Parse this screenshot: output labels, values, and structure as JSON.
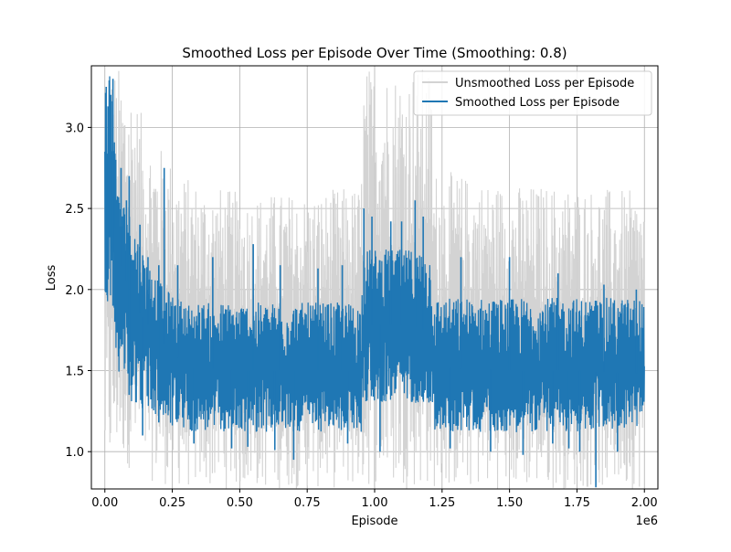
{
  "chart_data": {
    "type": "line",
    "title": "Smoothed Loss per Episode Over Time (Smoothing: 0.8)",
    "xlabel": "Episode",
    "ylabel": "Loss",
    "x_offset_label": "1e6",
    "xlim": [
      -0.05,
      2.05
    ],
    "ylim": [
      0.77,
      3.38
    ],
    "x_unit_multiplier": 1000000,
    "grid": true,
    "legend_position": "upper right",
    "x_ticks": [
      {
        "value": 0.0,
        "label": "0.00"
      },
      {
        "value": 0.25,
        "label": "0.25"
      },
      {
        "value": 0.5,
        "label": "0.50"
      },
      {
        "value": 0.75,
        "label": "0.75"
      },
      {
        "value": 1.0,
        "label": "1.00"
      },
      {
        "value": 1.25,
        "label": "1.25"
      },
      {
        "value": 1.5,
        "label": "1.50"
      },
      {
        "value": 1.75,
        "label": "1.75"
      },
      {
        "value": 2.0,
        "label": "2.00"
      }
    ],
    "y_ticks": [
      {
        "value": 1.0,
        "label": "1.0"
      },
      {
        "value": 1.5,
        "label": "1.5"
      },
      {
        "value": 2.0,
        "label": "2.0"
      },
      {
        "value": 2.5,
        "label": "2.5"
      },
      {
        "value": 3.0,
        "label": "3.0"
      }
    ],
    "series": [
      {
        "name": "Unsmoothed Loss per Episode",
        "color": "#d3d3d3",
        "style": "noisy band",
        "x": [
          0,
          0.05,
          0.1,
          0.15,
          0.2,
          0.3,
          0.5,
          0.75,
          0.95,
          0.96,
          1.1,
          1.21,
          1.22,
          1.5,
          1.75,
          2.0
        ],
        "lower": [
          0.77,
          0.95,
          0.88,
          0.83,
          0.8,
          0.77,
          0.77,
          0.77,
          0.77,
          0.77,
          0.77,
          0.77,
          0.77,
          0.77,
          0.77,
          0.77
        ],
        "upper": [
          3.38,
          3.38,
          3.3,
          3.0,
          2.9,
          2.7,
          2.6,
          2.6,
          2.65,
          3.38,
          3.38,
          3.38,
          2.75,
          2.65,
          2.65,
          2.6
        ]
      },
      {
        "name": "Smoothed Loss per Episode",
        "color": "#1f77b4",
        "style": "noisy band",
        "x": [
          0,
          0.02,
          0.05,
          0.1,
          0.15,
          0.2,
          0.25,
          0.3,
          0.5,
          0.75,
          0.95,
          0.96,
          1.1,
          1.2,
          1.21,
          1.22,
          1.5,
          1.75,
          2.0
        ],
        "center": [
          2.45,
          2.75,
          2.2,
          1.95,
          1.8,
          1.7,
          1.62,
          1.52,
          1.5,
          1.5,
          1.5,
          1.78,
          1.78,
          1.75,
          1.7,
          1.52,
          1.5,
          1.5,
          1.48
        ],
        "lower": [
          1.9,
          1.95,
          1.5,
          1.3,
          1.25,
          1.2,
          1.15,
          1.12,
          1.12,
          1.12,
          1.12,
          1.3,
          1.3,
          1.3,
          1.25,
          1.12,
          1.12,
          1.12,
          1.15
        ],
        "upper": [
          3.38,
          3.38,
          2.6,
          2.45,
          2.2,
          2.05,
          1.97,
          1.92,
          1.92,
          1.92,
          1.92,
          2.25,
          2.25,
          2.25,
          2.2,
          1.95,
          1.95,
          1.95,
          1.95
        ]
      }
    ],
    "spikes": {
      "up": [
        [
          0.005,
          3.25
        ],
        [
          0.03,
          3.3
        ],
        [
          0.04,
          2.8
        ],
        [
          0.06,
          2.75
        ],
        [
          0.08,
          2.55
        ],
        [
          0.09,
          2.7
        ],
        [
          0.13,
          2.4
        ],
        [
          0.16,
          2.2
        ],
        [
          0.2,
          2.15
        ],
        [
          0.22,
          2.75
        ],
        [
          0.27,
          2.15
        ],
        [
          0.4,
          2.2
        ],
        [
          0.55,
          2.28
        ],
        [
          0.65,
          2.15
        ],
        [
          0.79,
          2.13
        ],
        [
          0.88,
          2.15
        ],
        [
          0.96,
          2.5
        ],
        [
          0.99,
          2.45
        ],
        [
          1.06,
          2.42
        ],
        [
          1.1,
          2.42
        ],
        [
          1.15,
          2.55
        ],
        [
          1.18,
          2.45
        ],
        [
          1.32,
          2.2
        ],
        [
          1.5,
          2.2
        ],
        [
          1.68,
          2.1
        ],
        [
          1.85,
          2.03
        ],
        [
          1.97,
          2.0
        ]
      ],
      "down": [
        [
          0.03,
          1.9
        ],
        [
          0.09,
          1.35
        ],
        [
          0.14,
          1.1
        ],
        [
          0.2,
          1.18
        ],
        [
          0.33,
          1.05
        ],
        [
          0.47,
          1.02
        ],
        [
          0.53,
          1.03
        ],
        [
          0.63,
          1.01
        ],
        [
          0.7,
          0.95
        ],
        [
          0.9,
          1.05
        ],
        [
          1.02,
          1.0
        ],
        [
          1.28,
          1.02
        ],
        [
          1.43,
          1.0
        ],
        [
          1.55,
          0.98
        ],
        [
          1.66,
          1.05
        ],
        [
          1.72,
          1.02
        ],
        [
          1.76,
          1.0
        ],
        [
          1.82,
          0.78
        ],
        [
          1.9,
          1.0
        ]
      ]
    }
  },
  "legend": {
    "items": [
      {
        "label": "Unsmoothed Loss per Episode",
        "color": "#d3d3d3"
      },
      {
        "label": "Smoothed Loss per Episode",
        "color": "#1f77b4"
      }
    ]
  }
}
